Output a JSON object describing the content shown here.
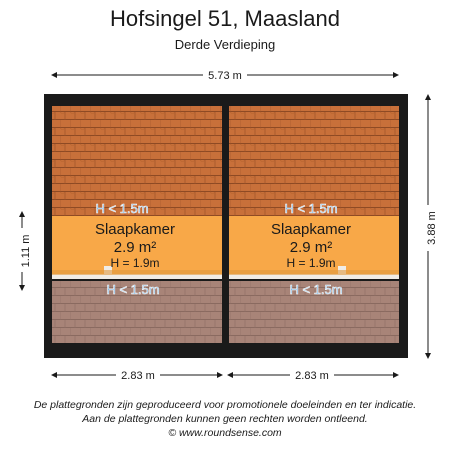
{
  "header": {
    "title": "Hofsingel 51, Maasland",
    "subtitle": "Derde Verdieping"
  },
  "dimensions": {
    "top_width": "5.73 m",
    "right_height": "3.88 m",
    "left_height": "1.11 m",
    "bottom_left": "2.83 m",
    "bottom_right": "2.83 m"
  },
  "rooms": [
    {
      "name": "Slaapkamer",
      "area": "2.9 m²",
      "height": "H = 1.9m",
      "low_height_top": "H < 1.5m",
      "low_height_bottom": "H < 1.5m"
    },
    {
      "name": "Slaapkamer",
      "area": "2.9 m²",
      "height": "H = 1.9m",
      "low_height_top": "H < 1.5m",
      "low_height_bottom": "H < 1.5m"
    }
  ],
  "colors": {
    "wall": "#1a1a1a",
    "roof_upper": "#c8703a",
    "roof_lower": "#a88478",
    "floor": "#f8a848",
    "low_label": "#5aa0d8"
  },
  "footer": {
    "line1": "De plattegronden zijn geproduceerd voor promotionele doeleinden en ter indicatie.",
    "line2": "Aan de plattegronden kunnen geen rechten worden ontleend.",
    "line3": "© www.roundsense.com"
  }
}
